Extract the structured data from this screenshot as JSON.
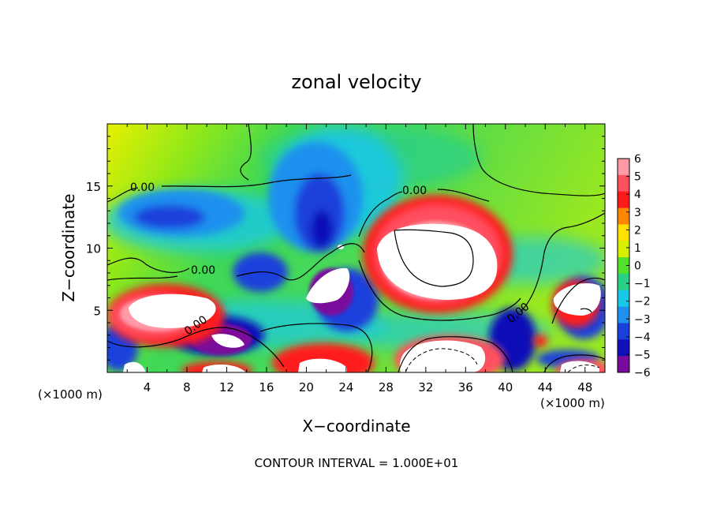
{
  "chart_data": {
    "type": "heatmap",
    "title": "zonal velocity",
    "xlabel": "X−coordinate",
    "ylabel": "Z−coordinate",
    "x_unit_left": "(×1000 m)",
    "x_unit_right": "(×1000 m)",
    "xlim": [
      0,
      50
    ],
    "ylim": [
      0,
      20
    ],
    "x_ticks": [
      4,
      8,
      12,
      16,
      20,
      24,
      28,
      32,
      36,
      40,
      44,
      48
    ],
    "y_ticks": [
      5,
      10,
      15
    ],
    "colorbar": {
      "ticks": [
        6,
        5,
        4,
        3,
        2,
        1,
        0,
        -1,
        -2,
        -3,
        -4,
        -5,
        -6
      ],
      "labels": [
        "6",
        "5",
        "4",
        "3",
        "2",
        "1",
        "0",
        "−1",
        "−2",
        "−3",
        "−4",
        "−5",
        "−6"
      ],
      "colors": [
        "#ff9aa6",
        "#ff5060",
        "#ff1a1a",
        "#ff8800",
        "#ffe000",
        "#d6f000",
        "#52e02c",
        "#2ccf86",
        "#18c8e6",
        "#1e90ee",
        "#1a40dc",
        "#1010b8",
        "#7a0a9c"
      ]
    },
    "field_features": [
      {
        "kind": "positive_jet",
        "x": 32,
        "z": 10,
        "value": 6
      },
      {
        "kind": "positive_jet",
        "x": 8,
        "z": 5,
        "value": 6
      },
      {
        "kind": "positive_jet",
        "x": 48,
        "z": 6,
        "value": 6
      },
      {
        "kind": "negative_core",
        "x": 21,
        "z": 12,
        "value": -5
      },
      {
        "kind": "negative_core",
        "x": 4,
        "z": 13,
        "value": -4
      },
      {
        "kind": "negative_core",
        "x": 40,
        "z": 3,
        "value": -5
      }
    ],
    "contour_labels": [
      "0.00",
      "0.00",
      "0.00",
      "0.00",
      "0.00"
    ],
    "contour_interval_text": "CONTOUR INTERVAL = 1.000E+01",
    "grid": false,
    "legend": "colorbar-right"
  }
}
